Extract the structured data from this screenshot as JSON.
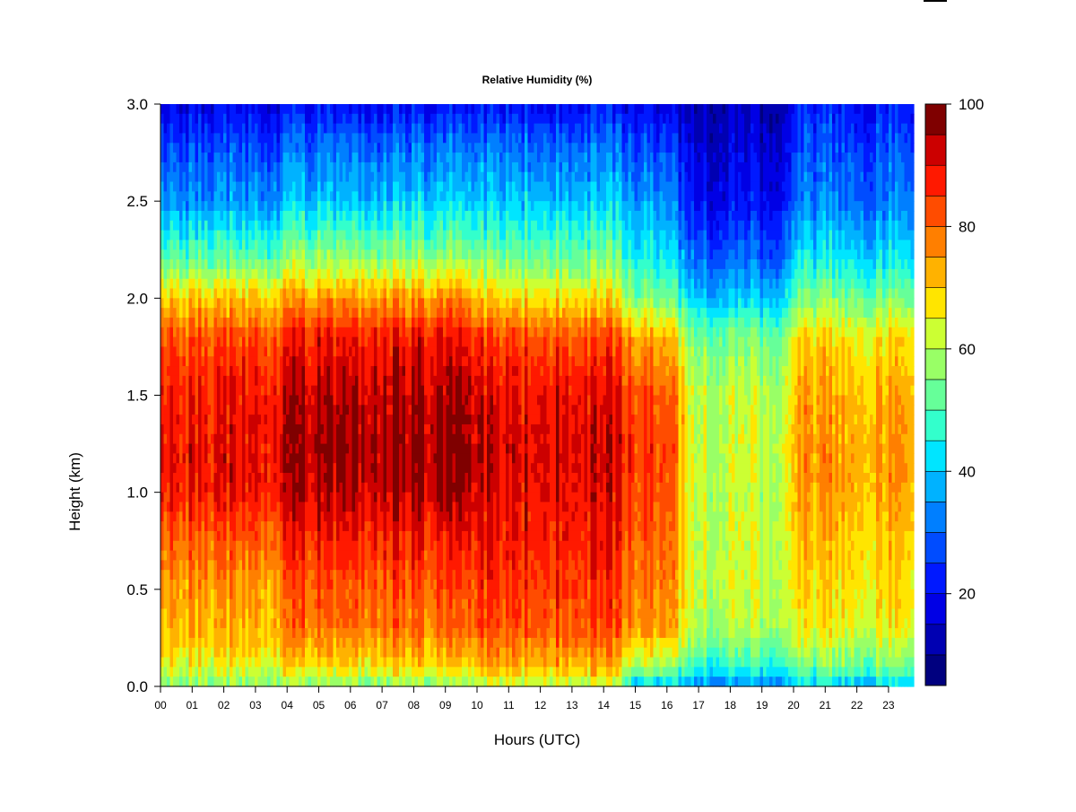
{
  "chart_data": {
    "type": "heatmap",
    "title": "Relative Humidity (%)",
    "xlabel": "Hours (UTC)",
    "ylabel": "Height (km)",
    "x_ticks": [
      "00",
      "01",
      "02",
      "03",
      "04",
      "05",
      "06",
      "07",
      "08",
      "09",
      "10",
      "11",
      "12",
      "13",
      "14",
      "15",
      "16",
      "17",
      "18",
      "19",
      "20",
      "21",
      "22",
      "23"
    ],
    "y_ticks": [
      "0.0",
      "0.5",
      "1.0",
      "1.5",
      "2.0",
      "2.5",
      "3.0"
    ],
    "xlim": [
      0,
      23.9
    ],
    "ylim": [
      0,
      3.0
    ],
    "colorbar": {
      "range": [
        5,
        100
      ],
      "ticks": [
        "20",
        "40",
        "60",
        "80",
        "100"
      ],
      "levels": [
        5,
        10,
        15,
        20,
        25,
        30,
        35,
        40,
        45,
        50,
        55,
        60,
        65,
        70,
        75,
        80,
        85,
        90,
        95,
        100
      ],
      "colors": [
        "#00007f",
        "#0000b2",
        "#0000e5",
        "#0019ff",
        "#004cff",
        "#007fff",
        "#00b2ff",
        "#00e5ff",
        "#33ffcc",
        "#66ff99",
        "#99ff66",
        "#ccff33",
        "#ffe500",
        "#ffb200",
        "#ff7f00",
        "#ff4c00",
        "#ff1900",
        "#cc0000",
        "#7f0000"
      ]
    },
    "profiles": [
      {
        "hours": "00-04",
        "surface": 55,
        "rh_0_5km": 75,
        "rh_1_2km": 90,
        "rh_2_0km": 70,
        "rh_2_5km": 35,
        "rh_3_0km": 18
      },
      {
        "hours": "04-10",
        "surface": 55,
        "rh_0_5km": 82,
        "rh_1_2km": 96,
        "rh_2_0km": 75,
        "rh_2_5km": 40,
        "rh_3_0km": 20
      },
      {
        "hours": "10-14.7",
        "surface": 60,
        "rh_0_5km": 85,
        "rh_1_2km": 92,
        "rh_2_0km": 68,
        "rh_2_5km": 40,
        "rh_3_0km": 20
      },
      {
        "hours": "14.7-16.5",
        "surface": 40,
        "rh_0_5km": 78,
        "rh_1_2km": 85,
        "rh_2_0km": 55,
        "rh_2_5km": 35,
        "rh_3_0km": 18
      },
      {
        "hours": "16.5-20",
        "surface": 33,
        "rh_0_5km": 62,
        "rh_1_2km": 62,
        "rh_2_0km": 40,
        "rh_2_5km": 20,
        "rh_3_0km": 12
      },
      {
        "hours": "20-23.9",
        "surface": 40,
        "rh_0_5km": 68,
        "rh_1_2km": 75,
        "rh_2_0km": 55,
        "rh_2_5km": 32,
        "rh_3_0km": 22
      }
    ]
  }
}
